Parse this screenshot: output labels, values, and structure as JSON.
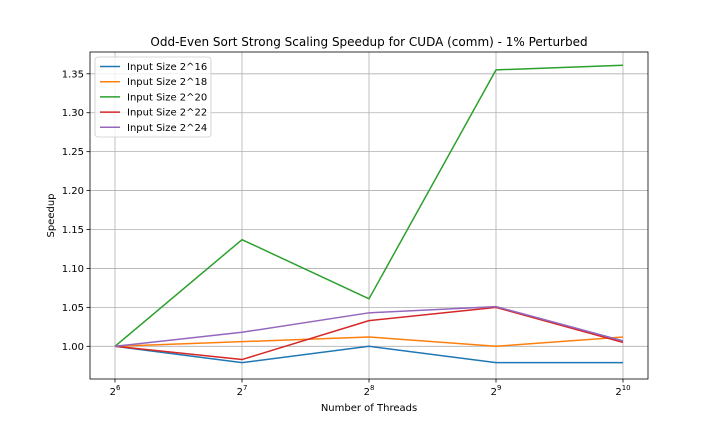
{
  "chart_data": {
    "type": "line",
    "title": "Odd-Even Sort Strong Scaling Speedup for CUDA (comm) - 1% Perturbed",
    "xlabel": "Number of Threads",
    "ylabel": "Speedup",
    "x_scale": "log2",
    "x": [
      64,
      128,
      256,
      512,
      1024
    ],
    "x_tick_labels": [
      {
        "base": "2",
        "exp": "6"
      },
      {
        "base": "2",
        "exp": "7"
      },
      {
        "base": "2",
        "exp": "8"
      },
      {
        "base": "2",
        "exp": "9"
      },
      {
        "base": "2",
        "exp": "10"
      }
    ],
    "ylim": [
      0.958,
      1.378
    ],
    "y_ticks": [
      "1.00",
      "1.05",
      "1.10",
      "1.15",
      "1.20",
      "1.25",
      "1.30",
      "1.35"
    ],
    "grid": true,
    "legend_position": "top-left",
    "series": [
      {
        "name": "Input Size 2^16",
        "color": "#1f77b4",
        "values": [
          1.0,
          0.979,
          1.0,
          0.979,
          0.979
        ]
      },
      {
        "name": "Input Size 2^18",
        "color": "#ff7f0e",
        "values": [
          1.0,
          1.006,
          1.012,
          1.0,
          1.012
        ]
      },
      {
        "name": "Input Size 2^20",
        "color": "#2ca02c",
        "values": [
          1.0,
          1.137,
          1.061,
          1.355,
          1.361
        ]
      },
      {
        "name": "Input Size 2^22",
        "color": "#d62728",
        "values": [
          1.0,
          0.983,
          1.033,
          1.05,
          1.005
        ]
      },
      {
        "name": "Input Size 2^24",
        "color": "#9467bd",
        "values": [
          1.0,
          1.018,
          1.043,
          1.051,
          1.007
        ]
      }
    ]
  }
}
